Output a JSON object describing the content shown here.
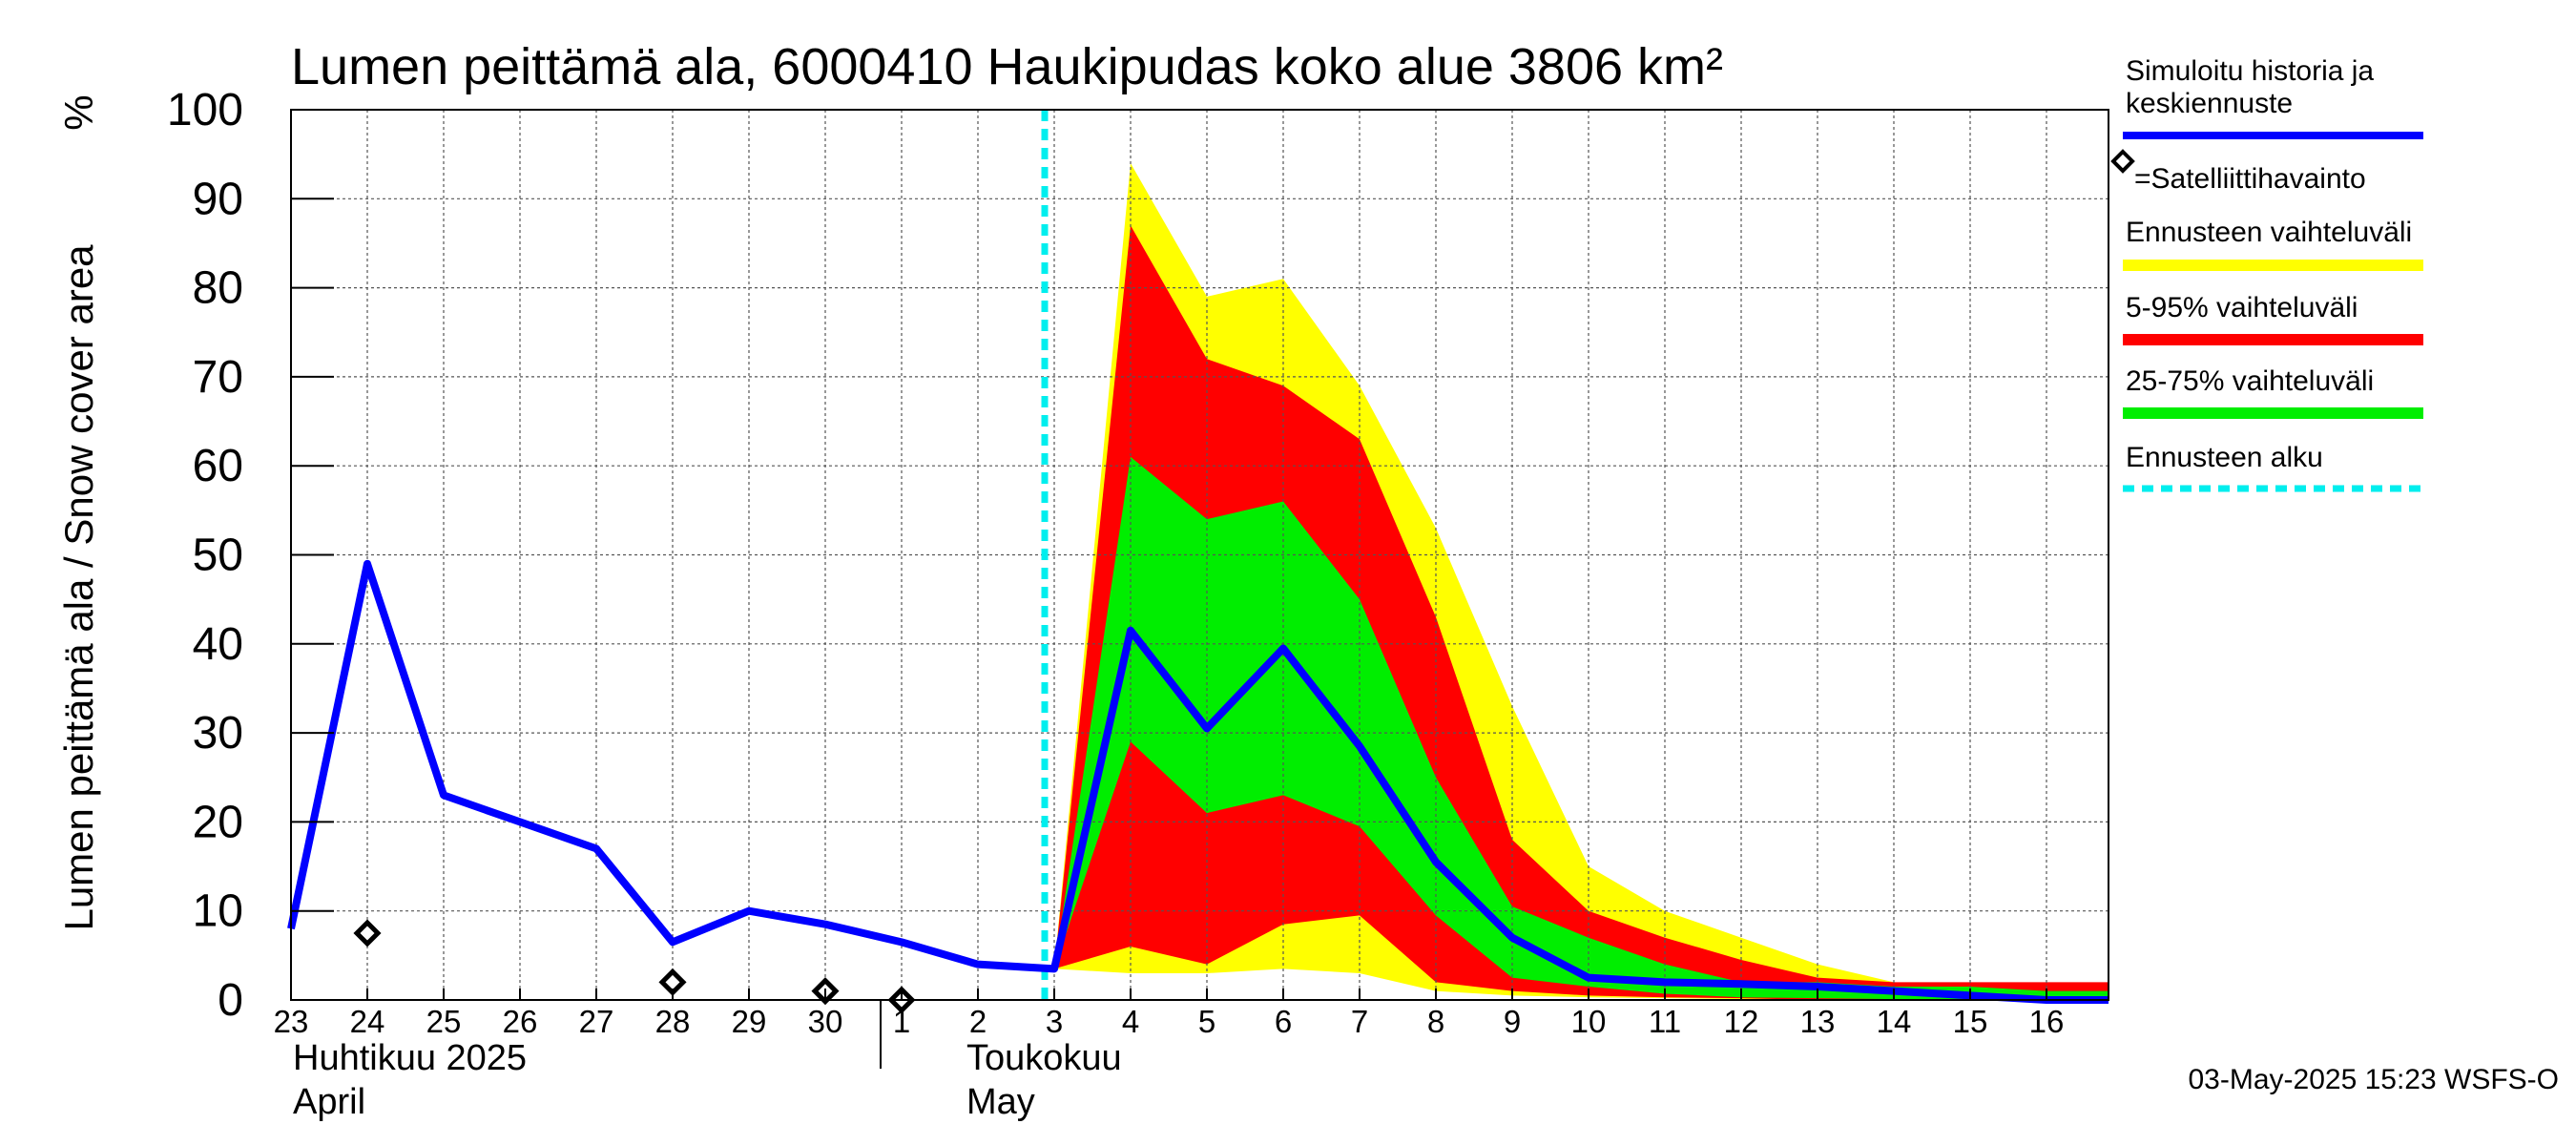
{
  "chart_data": {
    "type": "area",
    "title": "Lumen peittämä ala, 6000410 Haukipudas koko alue 3806 km²",
    "ylabel": "Lumen peittämä ala / Snow cover area",
    "yunit": "%",
    "ylim": [
      0,
      100
    ],
    "yticks": [
      0,
      10,
      20,
      30,
      40,
      50,
      60,
      70,
      80,
      90,
      100
    ],
    "x_start": "2025-04-23",
    "x_end": "2025-05-16",
    "xticks": [
      {
        "date": "2025-04-23",
        "label": "23"
      },
      {
        "date": "2025-04-24",
        "label": "24"
      },
      {
        "date": "2025-04-25",
        "label": "25"
      },
      {
        "date": "2025-04-26",
        "label": "26"
      },
      {
        "date": "2025-04-27",
        "label": "27"
      },
      {
        "date": "2025-04-28",
        "label": "28"
      },
      {
        "date": "2025-04-29",
        "label": "29"
      },
      {
        "date": "2025-04-30",
        "label": "30"
      },
      {
        "date": "2025-05-01",
        "label": "1"
      },
      {
        "date": "2025-05-02",
        "label": "2"
      },
      {
        "date": "2025-05-03",
        "label": "3"
      },
      {
        "date": "2025-05-04",
        "label": "4"
      },
      {
        "date": "2025-05-05",
        "label": "5"
      },
      {
        "date": "2025-05-06",
        "label": "6"
      },
      {
        "date": "2025-05-07",
        "label": "7"
      },
      {
        "date": "2025-05-08",
        "label": "8"
      },
      {
        "date": "2025-05-09",
        "label": "9"
      },
      {
        "date": "2025-05-10",
        "label": "10"
      },
      {
        "date": "2025-05-11",
        "label": "11"
      },
      {
        "date": "2025-05-12",
        "label": "12"
      },
      {
        "date": "2025-05-13",
        "label": "13"
      },
      {
        "date": "2025-05-14",
        "label": "14"
      },
      {
        "date": "2025-05-15",
        "label": "15"
      },
      {
        "date": "2025-05-16",
        "label": "16"
      }
    ],
    "month_labels": [
      {
        "date": "2025-04-23",
        "lines": [
          "Huhtikuu  2025",
          "April"
        ]
      },
      {
        "date": "2025-05-01",
        "lines": [
          "Toukokuu",
          "May"
        ]
      }
    ],
    "month_divider_date": "2025-05-01",
    "forecast_start": "2025-05-03",
    "grid": true,
    "bands": {
      "range_yellow": {
        "color": "#ffff00",
        "x": [
          "2025-05-03",
          "2025-05-04",
          "2025-05-05",
          "2025-05-06",
          "2025-05-07",
          "2025-05-08",
          "2025-05-09",
          "2025-05-10",
          "2025-05-11",
          "2025-05-12",
          "2025-05-13",
          "2025-05-14",
          "2025-05-15",
          "2025-05-16",
          "2025-05-17"
        ],
        "upper": [
          3.5,
          94,
          79,
          81,
          69,
          53,
          33,
          15,
          10,
          7,
          4,
          2,
          1.5,
          1,
          1
        ],
        "lower": [
          3.5,
          3,
          3,
          3.5,
          3,
          1,
          0.5,
          0.3,
          0.2,
          0.1,
          0,
          0,
          0,
          0,
          0
        ]
      },
      "p5_95": {
        "color": "#ff0000",
        "x": [
          "2025-05-03",
          "2025-05-04",
          "2025-05-05",
          "2025-05-06",
          "2025-05-07",
          "2025-05-08",
          "2025-05-09",
          "2025-05-10",
          "2025-05-11",
          "2025-05-12",
          "2025-05-13",
          "2025-05-14",
          "2025-05-15",
          "2025-05-16",
          "2025-05-17"
        ],
        "upper": [
          3.5,
          87,
          72,
          69,
          63,
          43,
          18,
          10,
          7,
          4.5,
          2.5,
          2,
          2,
          2,
          2
        ],
        "lower": [
          3.5,
          6,
          4,
          8.5,
          9.5,
          2,
          1,
          0.5,
          0.3,
          0.2,
          0,
          0,
          0,
          0,
          0
        ]
      },
      "p25_75": {
        "color": "#00ee00",
        "x": [
          "2025-05-03",
          "2025-05-04",
          "2025-05-05",
          "2025-05-06",
          "2025-05-07",
          "2025-05-08",
          "2025-05-09",
          "2025-05-10",
          "2025-05-11",
          "2025-05-12",
          "2025-05-13",
          "2025-05-14",
          "2025-05-15",
          "2025-05-16",
          "2025-05-17"
        ],
        "upper": [
          3.5,
          61,
          54,
          56,
          45,
          25,
          10.5,
          7,
          4,
          2,
          2,
          1.5,
          1.5,
          1,
          1
        ],
        "lower": [
          3.5,
          29,
          21,
          23,
          19.5,
          9.5,
          2.5,
          1.5,
          0.7,
          0.3,
          0.2,
          0.1,
          0.1,
          0,
          0
        ]
      }
    },
    "series": [
      {
        "name": "Simuloitu historia ja keskiennuste",
        "color": "#0000ff",
        "x": [
          "2025-04-23",
          "2025-04-24",
          "2025-04-25",
          "2025-04-26",
          "2025-04-27",
          "2025-04-28",
          "2025-04-29",
          "2025-04-30",
          "2025-05-01",
          "2025-05-02",
          "2025-05-03",
          "2025-05-04",
          "2025-05-05",
          "2025-05-06",
          "2025-05-07",
          "2025-05-08",
          "2025-05-09",
          "2025-05-10",
          "2025-05-11",
          "2025-05-12",
          "2025-05-13",
          "2025-05-14",
          "2025-05-15",
          "2025-05-16",
          "2025-05-17"
        ],
        "values": [
          8,
          49,
          23,
          20,
          17,
          6.5,
          10,
          8.5,
          6.5,
          4,
          3.5,
          41.5,
          30.5,
          39.5,
          28.5,
          15.5,
          7,
          2.5,
          2,
          1.8,
          1.5,
          1,
          0.5,
          0,
          0
        ]
      }
    ],
    "satellite_observations": {
      "x": [
        "2025-04-24",
        "2025-04-28",
        "2025-04-30",
        "2025-05-01"
      ],
      "values": [
        7.5,
        2,
        1,
        0
      ]
    }
  },
  "legend": {
    "items": [
      {
        "label": "Simuloitu historia ja keskiennuste",
        "label_lines": [
          "Simuloitu historia ja",
          "keskiennuste"
        ],
        "color": "#0000ff",
        "kind": "line"
      },
      {
        "label": "=Satelliittihavainto",
        "kind": "marker"
      },
      {
        "label": "Ennusteen vaihteluväli",
        "color": "#ffff00",
        "kind": "band"
      },
      {
        "label": "5-95% vaihteluväli",
        "color": "#ff0000",
        "kind": "band"
      },
      {
        "label": "25-75% vaihteluväli",
        "color": "#00ee00",
        "kind": "band"
      },
      {
        "label": "Ennusteen alku",
        "color": "#00eeee",
        "kind": "dashed"
      }
    ]
  },
  "footer": "03-May-2025 15:23 WSFS-O"
}
